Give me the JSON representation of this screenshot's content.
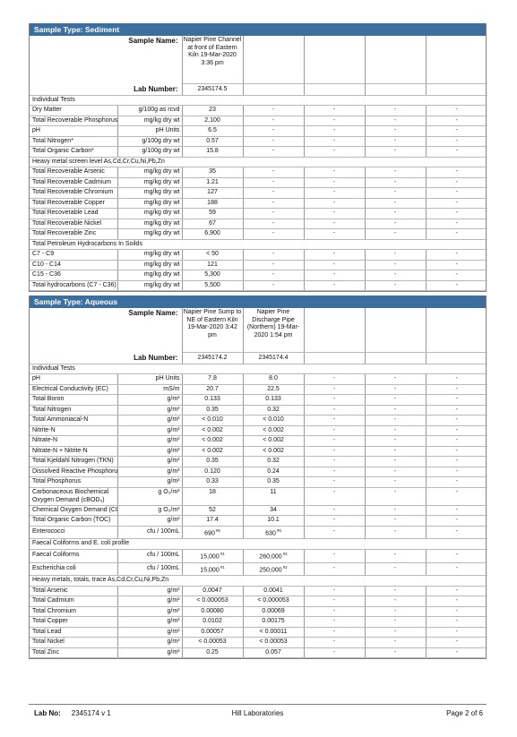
{
  "colors": {
    "section_header": "#3d6f9e",
    "rule": "#7f7f7f"
  },
  "dash": "-",
  "sediment": {
    "section_label": "Sample Type:  Sediment",
    "sample_name_label": "Sample Name:",
    "lab_number_label": "Lab Number:",
    "sample_names": [
      "Napier Pine Channel at front of Eastern Kiln 19-Mar-2020 3:36 pm"
    ],
    "lab_numbers": [
      "2345174.5"
    ],
    "groups": [
      {
        "title": "Individual Tests",
        "rows": [
          {
            "name": "Dry Matter",
            "unit": "g/100g as rcvd",
            "values": [
              "23"
            ]
          },
          {
            "name": "Total Recoverable Phosphorus",
            "unit": "mg/kg dry wt",
            "values": [
              "2,100"
            ]
          },
          {
            "name": "pH",
            "unit": "pH Units",
            "values": [
              "6.5"
            ]
          },
          {
            "name": "Total Nitrogen*",
            "unit": "g/100g dry wt",
            "values": [
              "0.57"
            ]
          },
          {
            "name": "Total Organic Carbon*",
            "unit": "g/100g dry wt",
            "values": [
              "15.8"
            ]
          }
        ]
      },
      {
        "title": "Heavy metal screen level  As,Cd,Cr,Cu,Ni,Pb,Zn",
        "rows": [
          {
            "name": "Total Recoverable Arsenic",
            "unit": "mg/kg dry wt",
            "values": [
              "35"
            ]
          },
          {
            "name": "Total Recoverable Cadmium",
            "unit": "mg/kg dry wt",
            "values": [
              "1.21"
            ]
          },
          {
            "name": "Total Recoverable Chromium",
            "unit": "mg/kg dry wt",
            "values": [
              "127"
            ]
          },
          {
            "name": "Total Recoverable Copper",
            "unit": "mg/kg dry wt",
            "values": [
              "188"
            ]
          },
          {
            "name": "Total Recoverable Lead",
            "unit": "mg/kg dry wt",
            "values": [
              "59"
            ]
          },
          {
            "name": "Total Recoverable Nickel",
            "unit": "mg/kg dry wt",
            "values": [
              "67"
            ]
          },
          {
            "name": "Total Recoverable Zinc",
            "unit": "mg/kg dry wt",
            "values": [
              "6,900"
            ]
          }
        ]
      },
      {
        "title": "Total Petroleum Hydrocarbons In Soilds",
        "rows": [
          {
            "name": "C7 - C9",
            "unit": "mg/kg dry wt",
            "values": [
              "< 50"
            ]
          },
          {
            "name": "C10 - C14",
            "unit": "mg/kg dry wt",
            "values": [
              "121"
            ]
          },
          {
            "name": "C15 - C36",
            "unit": "mg/kg dry wt",
            "values": [
              "5,300"
            ]
          },
          {
            "name": "Total hydrocarbons (C7 - C36)",
            "unit": "mg/kg dry wt",
            "values": [
              "5,500"
            ]
          }
        ]
      }
    ]
  },
  "aqueous": {
    "section_label": "Sample Type:  Aqueous",
    "sample_name_label": "Sample Name:",
    "lab_number_label": "Lab Number:",
    "sample_names": [
      "Napier Pine Sump to NE of Eastern Kiln 19-Mar-2020 3:42 pm",
      "Napier Pine Discharge Pipe (Northern) 19-Mar-2020 1:54 pm"
    ],
    "lab_numbers": [
      "2345174.2",
      "2345174.4"
    ],
    "groups": [
      {
        "title": "Individual Tests",
        "rows": [
          {
            "name": "pH",
            "unit": "pH Units",
            "values": [
              "7.8",
              "8.0"
            ]
          },
          {
            "name": "Electrical Conductivity (EC)",
            "unit": "mS/m",
            "values": [
              "20.7",
              "22.5"
            ]
          },
          {
            "name": "Total Boron",
            "unit": "g/m³",
            "values": [
              "0.133",
              "0.133"
            ]
          },
          {
            "name": "Total Nitrogen",
            "unit": "g/m³",
            "values": [
              "0.35",
              "0.32"
            ]
          },
          {
            "name": "Total Ammoniacal-N",
            "unit": "g/m³",
            "values": [
              "< 0.010",
              "< 0.010"
            ]
          },
          {
            "name": "Nitrite-N",
            "unit": "g/m³",
            "values": [
              "< 0.002",
              "< 0.002"
            ]
          },
          {
            "name": "Nitrate-N",
            "unit": "g/m³",
            "values": [
              "< 0.002",
              "< 0.002"
            ]
          },
          {
            "name": "Nitrate-N + Nitrite-N",
            "unit": "g/m³",
            "values": [
              "< 0.002",
              "< 0.002"
            ]
          },
          {
            "name": "Total Kjeldahl Nitrogen (TKN)",
            "unit": "g/m³",
            "values": [
              "0.35",
              "0.32"
            ]
          },
          {
            "name": "Dissolved Reactive Phosphorus",
            "unit": "g/m³",
            "values": [
              "0.120",
              "0.24"
            ]
          },
          {
            "name": "Total Phosphorus",
            "unit": "g/m³",
            "values": [
              "0.33",
              "0.35"
            ]
          },
          {
            "name": "Carbonaceous Biochemical Oxygen Demand (cBOD₅)",
            "unit": "g O₂/m³",
            "values": [
              "18",
              "11"
            ],
            "tall": true
          },
          {
            "name": "Chemical Oxygen Demand (COD)",
            "unit": "g O₂/m³",
            "values": [
              "52",
              "34"
            ]
          },
          {
            "name": "Total Organic Carbon (TOC)",
            "unit": "g/m³",
            "values": [
              "17.4",
              "10.1"
            ]
          },
          {
            "name": "Enterococci",
            "unit": "cfu / 100mL",
            "values": [
              "690",
              "630"
            ],
            "notes": [
              "#5",
              "#5"
            ]
          }
        ]
      },
      {
        "title": "Faecal Coliforms and E. coli profile",
        "rows": [
          {
            "name": "Faecal Coliforms",
            "unit": "cfu / 100mL",
            "values": [
              "15,000",
              "260,000"
            ],
            "notes": [
              "#1",
              "#2"
            ]
          },
          {
            "name": "Escherichia coli",
            "unit": "cfu / 100mL",
            "values": [
              "15,000",
              "250,000"
            ],
            "notes": [
              "#1",
              "#2"
            ]
          }
        ]
      },
      {
        "title": "Heavy metals, totals, trace As,Cd,Cr,Cu,Ni,Pb,Zn",
        "rows": [
          {
            "name": "Total Arsenic",
            "unit": "g/m³",
            "values": [
              "0.0047",
              "0.0041"
            ]
          },
          {
            "name": "Total Cadmium",
            "unit": "g/m³",
            "values": [
              "< 0.000053",
              "< 0.000053"
            ]
          },
          {
            "name": "Total Chromium",
            "unit": "g/m³",
            "values": [
              "0.00080",
              "0.00069"
            ]
          },
          {
            "name": "Total Copper",
            "unit": "g/m³",
            "values": [
              "0.0102",
              "0.00175"
            ]
          },
          {
            "name": "Total Lead",
            "unit": "g/m³",
            "values": [
              "0.00057",
              "< 0.00011"
            ]
          },
          {
            "name": "Total Nickel",
            "unit": "g/m³",
            "values": [
              "< 0.00053",
              "< 0.00053"
            ]
          },
          {
            "name": "Total Zinc",
            "unit": "g/m³",
            "values": [
              "0.25",
              "0.057"
            ]
          }
        ]
      }
    ]
  },
  "footer": {
    "lab_no_label": "Lab No:",
    "lab_no_value": "2345174 v 1",
    "lab_name": "Hill Laboratories",
    "page": "Page 2 of 6"
  }
}
